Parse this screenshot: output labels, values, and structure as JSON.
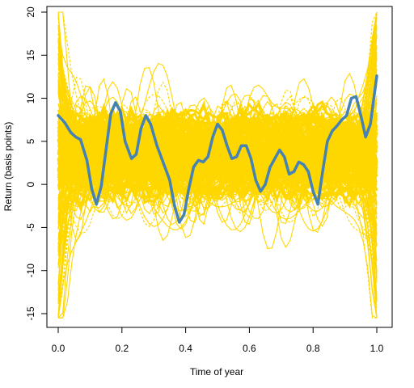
{
  "chart_data": {
    "type": "line",
    "title": "",
    "xlabel": "Time of year",
    "ylabel": "Return (basis points)",
    "xlim": [
      0,
      1
    ],
    "ylim": [
      -15,
      20
    ],
    "xticks": [
      0.0,
      0.2,
      0.4,
      0.6,
      0.8,
      1.0
    ],
    "xtick_labels": [
      "0.0",
      "0.2",
      "0.4",
      "0.6",
      "0.8",
      "1.0"
    ],
    "yticks": [
      -15,
      -10,
      -5,
      0,
      5,
      10,
      15,
      20
    ],
    "ytick_labels": [
      "-15",
      "-10",
      "-5",
      "0",
      "5",
      "10",
      "15",
      "20"
    ],
    "grid": false,
    "legend": "none",
    "colors": {
      "simulation": "#FFD700",
      "fit": "#4682B4",
      "axis": "#000000"
    },
    "series": [
      {
        "role": "highlight",
        "x": [
          0.0,
          0.02,
          0.04,
          0.055,
          0.07,
          0.09,
          0.105,
          0.12,
          0.135,
          0.15,
          0.165,
          0.18,
          0.195,
          0.21,
          0.23,
          0.245,
          0.26,
          0.275,
          0.29,
          0.31,
          0.33,
          0.35,
          0.365,
          0.38,
          0.395,
          0.41,
          0.425,
          0.44,
          0.455,
          0.47,
          0.485,
          0.5,
          0.515,
          0.53,
          0.545,
          0.56,
          0.575,
          0.59,
          0.605,
          0.62,
          0.635,
          0.65,
          0.665,
          0.68,
          0.695,
          0.71,
          0.725,
          0.74,
          0.755,
          0.77,
          0.785,
          0.8,
          0.815,
          0.83,
          0.845,
          0.86,
          0.875,
          0.89,
          0.905,
          0.92,
          0.935,
          0.95,
          0.965,
          0.98,
          1.0
        ],
        "y": [
          8.0,
          7.2,
          6.0,
          5.5,
          5.2,
          2.8,
          -0.5,
          -2.3,
          -0.2,
          4.0,
          8.2,
          9.5,
          8.5,
          5.0,
          3.0,
          3.5,
          6.5,
          8.0,
          7.0,
          4.5,
          2.5,
          0.5,
          -2.5,
          -4.4,
          -3.5,
          -0.5,
          2.0,
          2.8,
          2.6,
          3.2,
          5.5,
          7.0,
          6.3,
          4.5,
          3.0,
          3.2,
          4.5,
          4.5,
          3.0,
          0.5,
          -0.8,
          0.0,
          2.0,
          3.0,
          4.0,
          3.2,
          1.2,
          1.5,
          2.6,
          2.3,
          1.5,
          -0.8,
          -2.3,
          1.5,
          5.0,
          6.2,
          6.8,
          7.5,
          8.0,
          10.0,
          10.2,
          8.0,
          5.5,
          7.0,
          12.6
        ]
      }
    ]
  }
}
